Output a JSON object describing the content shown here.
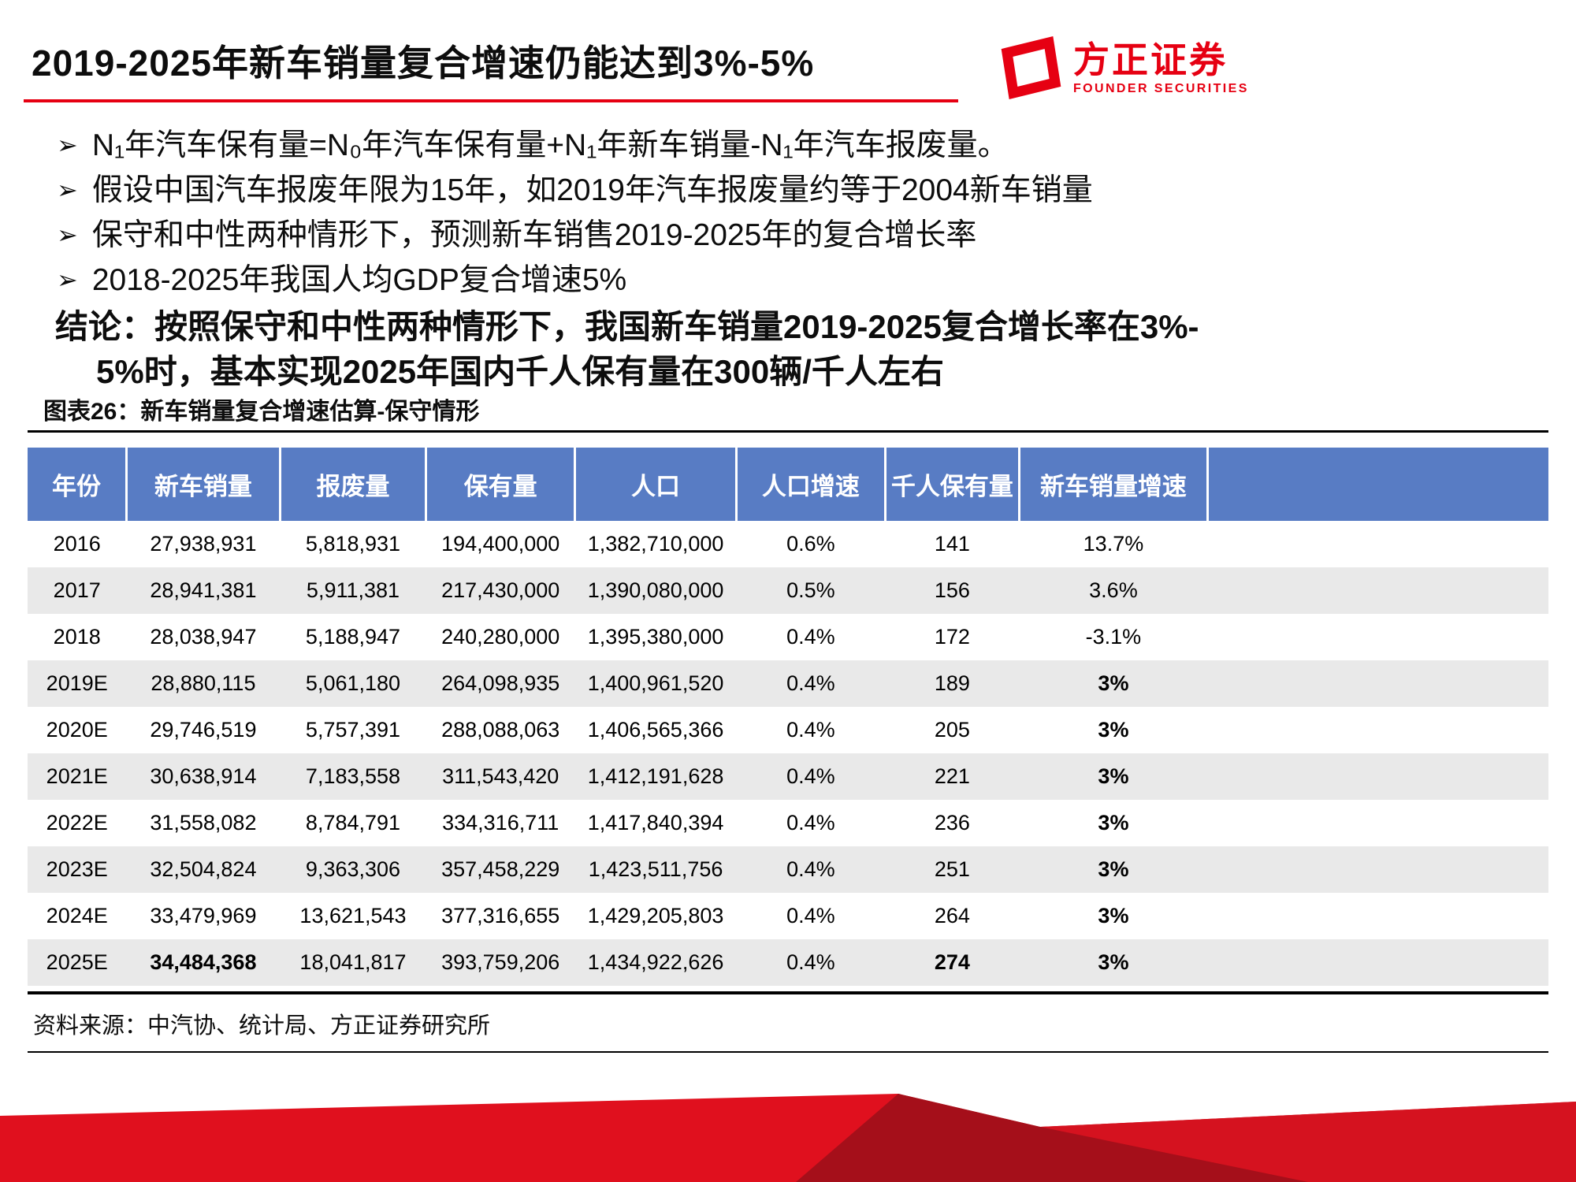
{
  "slide": {
    "title": "2019-2025年新车销量复合增速仍能达到3%-5%",
    "logo": {
      "cn": "方正证券",
      "en": "FOUNDER SECURITIES"
    },
    "bullet_marker": "➢",
    "bullets": [
      "N₁年汽车保有量=N₀年汽车保有量+N₁年新车销量-N₁年汽车报废量。",
      "假设中国汽车报废年限为15年，如2019年汽车报废量约等于2004新车销量",
      "保守和中性两种情形下，预测新车销售2019-2025年的复合增长率",
      "2018-2025年我国人均GDP复合增速5%"
    ],
    "conclusion_line1": "结论：按照保守和中性两种情形下，我国新车销量2019-2025复合增长率在3%-",
    "conclusion_line2": "5%时，基本实现2025年国内千人保有量在300辆/千人左右",
    "figure_caption": "图表26：新车销量复合增速估算-保守情形",
    "source": "资料来源：中汽协、统计局、方正证券研究所"
  },
  "colors": {
    "accent_red": "#E60012",
    "header_blue": "#587CC4",
    "stripe_gray": "#E9E9E9",
    "banner_red": "#E0101E",
    "banner_dark_red": "#A50F1A",
    "banner_mid_red": "#D5121F"
  },
  "table": {
    "headers": [
      "年份",
      "新车销量",
      "报废量",
      "保有量",
      "人口",
      "人口增速",
      "千人保有量",
      "新车销量增速",
      ""
    ],
    "rows": [
      {
        "cells": [
          "2016",
          "27,938,931",
          "5,818,931",
          "194,400,000",
          "1,382,710,000",
          "0.6%",
          "141",
          "13.7%"
        ],
        "bold": []
      },
      {
        "cells": [
          "2017",
          "28,941,381",
          "5,911,381",
          "217,430,000",
          "1,390,080,000",
          "0.5%",
          "156",
          "3.6%"
        ],
        "bold": []
      },
      {
        "cells": [
          "2018",
          "28,038,947",
          "5,188,947",
          "240,280,000",
          "1,395,380,000",
          "0.4%",
          "172",
          "-3.1%"
        ],
        "bold": []
      },
      {
        "cells": [
          "2019E",
          "28,880,115",
          "5,061,180",
          "264,098,935",
          "1,400,961,520",
          "0.4%",
          "189",
          "3%"
        ],
        "bold": [
          7
        ]
      },
      {
        "cells": [
          "2020E",
          "29,746,519",
          "5,757,391",
          "288,088,063",
          "1,406,565,366",
          "0.4%",
          "205",
          "3%"
        ],
        "bold": [
          7
        ]
      },
      {
        "cells": [
          "2021E",
          "30,638,914",
          "7,183,558",
          "311,543,420",
          "1,412,191,628",
          "0.4%",
          "221",
          "3%"
        ],
        "bold": [
          7
        ]
      },
      {
        "cells": [
          "2022E",
          "31,558,082",
          "8,784,791",
          "334,316,711",
          "1,417,840,394",
          "0.4%",
          "236",
          "3%"
        ],
        "bold": [
          7
        ]
      },
      {
        "cells": [
          "2023E",
          "32,504,824",
          "9,363,306",
          "357,458,229",
          "1,423,511,756",
          "0.4%",
          "251",
          "3%"
        ],
        "bold": [
          7
        ]
      },
      {
        "cells": [
          "2024E",
          "33,479,969",
          "13,621,543",
          "377,316,655",
          "1,429,205,803",
          "0.4%",
          "264",
          "3%"
        ],
        "bold": [
          7
        ]
      },
      {
        "cells": [
          "2025E",
          "34,484,368",
          "18,041,817",
          "393,759,206",
          "1,434,922,626",
          "0.4%",
          "274",
          "3%"
        ],
        "bold": [
          1,
          6,
          7
        ]
      }
    ]
  }
}
